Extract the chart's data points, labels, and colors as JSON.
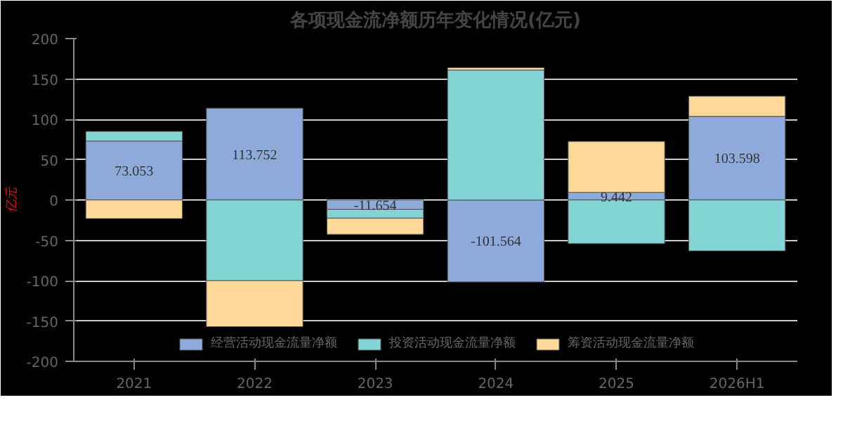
{
  "chart_data": {
    "type": "bar",
    "title": "各项现金流净额历年变化情况(亿元)",
    "ylabel": "亿元",
    "categories": [
      "2021",
      "2022",
      "2023",
      "2024",
      "2025",
      "2026H1"
    ],
    "stacked": true,
    "series": [
      {
        "name": "经营活动现金流量净额",
        "color": "#8eaadb",
        "values": [
          73.053,
          113.752,
          -11.654,
          -101.564,
          9.442,
          103.598
        ],
        "value_labels": [
          "73.053",
          "113.752",
          "-11.654",
          "-101.564",
          "9.442",
          "103.598"
        ]
      },
      {
        "name": "投资活动现金流量净额",
        "color": "#83d5d5",
        "values": [
          12,
          -100,
          -11,
          161,
          -54,
          -63
        ]
      },
      {
        "name": "筹资活动现金流量净额",
        "color": "#ffd999",
        "values": [
          -23,
          -57,
          -20,
          3,
          63,
          25
        ]
      }
    ],
    "ylim": [
      -200,
      200
    ],
    "yticks": [
      -200,
      -150,
      -100,
      -50,
      0,
      50,
      100,
      150,
      200
    ],
    "grid": "y",
    "legend": "bottom"
  }
}
